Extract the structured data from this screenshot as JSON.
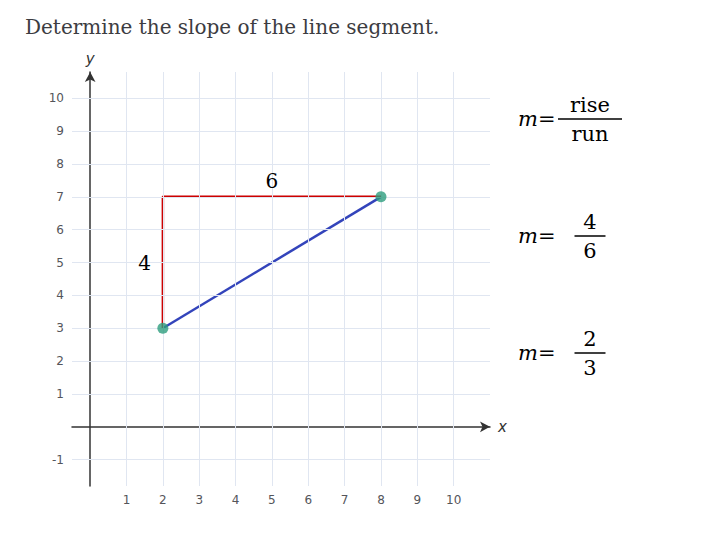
{
  "chart_data": {
    "type": "line",
    "title": "Determine the slope of the line segment.",
    "xlabel": "x",
    "ylabel": "y",
    "xlim": [
      -0.5,
      11.0
    ],
    "ylim": [
      -1.8,
      10.8
    ],
    "xticks": [
      1,
      2,
      3,
      4,
      5,
      6,
      7,
      8,
      9,
      10
    ],
    "yticks": [
      -1,
      1,
      2,
      3,
      4,
      5,
      6,
      7,
      8,
      9,
      10
    ],
    "grid": true,
    "series": [
      {
        "type": "line",
        "color": "#3344bb",
        "x": [
          2,
          8
        ],
        "values": [
          3,
          7
        ]
      },
      {
        "type": "line",
        "color": "#cc0000",
        "x": [
          2,
          2,
          8
        ],
        "values": [
          3,
          7,
          7
        ]
      },
      {
        "type": "scatter",
        "color": "#2e9e7e",
        "x": [
          2,
          8
        ],
        "values": [
          3,
          7
        ]
      }
    ],
    "annotations": {
      "run": 6,
      "rise": 4
    },
    "formulas": [
      {
        "left": "m=",
        "numerator": "rise",
        "denominator": "run"
      },
      {
        "left": "m=",
        "numerator": 4,
        "denominator": 6
      },
      {
        "left": "m=",
        "numerator": 2,
        "denominator": 3
      }
    ]
  }
}
